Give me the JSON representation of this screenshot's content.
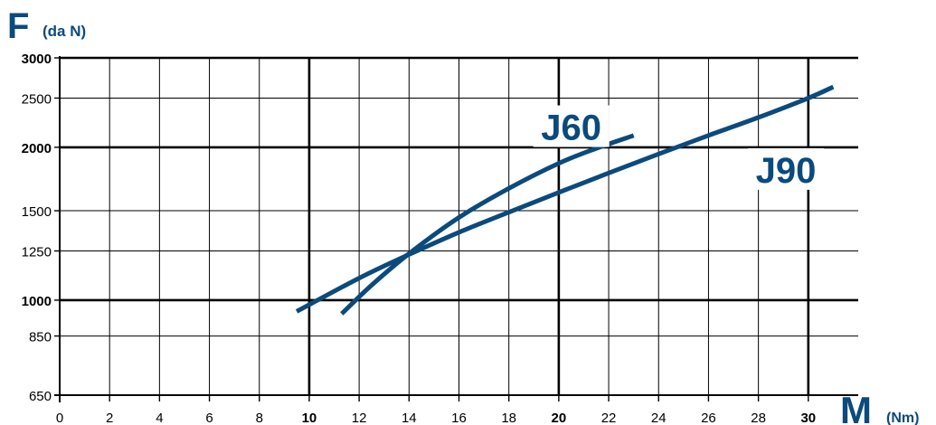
{
  "chart_data": {
    "type": "line",
    "y_axis_symbol": "F",
    "y_axis_unit": "(da N)",
    "x_axis_symbol": "M",
    "x_axis_unit": "(Nm)",
    "x_ticks": [
      0,
      2,
      4,
      6,
      8,
      10,
      12,
      14,
      16,
      18,
      20,
      22,
      24,
      26,
      28,
      30
    ],
    "x_major_ticks": [
      10,
      20,
      30
    ],
    "xlim": [
      0,
      32
    ],
    "y_ticks": [
      650,
      850,
      1000,
      1250,
      1500,
      2000,
      2500,
      3000
    ],
    "y_major_ticks": [
      1000,
      2000,
      3000
    ],
    "ylim": [
      650,
      3000
    ],
    "y_scale": "log",
    "grid": true,
    "line_color": "#0b4a7d",
    "series": [
      {
        "name": "J60",
        "x": [
          11.3,
          12.5,
          14,
          16,
          18,
          20,
          21.5,
          23
        ],
        "y": [
          940,
          1070,
          1235,
          1455,
          1660,
          1860,
          1990,
          2110
        ]
      },
      {
        "name": "J90",
        "x": [
          9.5,
          12,
          14,
          16,
          18,
          20,
          22,
          24,
          26,
          28,
          30,
          31
        ],
        "y": [
          950,
          1105,
          1230,
          1360,
          1490,
          1630,
          1780,
          1940,
          2110,
          2290,
          2500,
          2630
        ]
      }
    ]
  }
}
